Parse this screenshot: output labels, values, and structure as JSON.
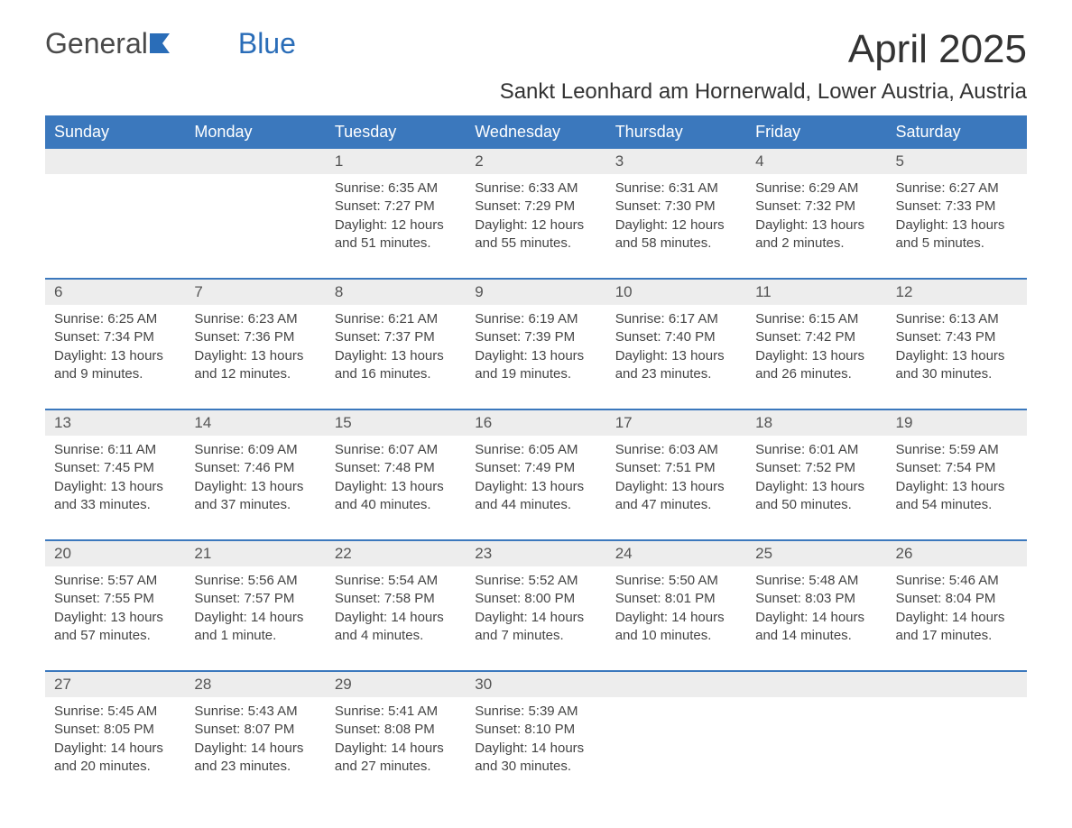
{
  "logo": {
    "text_general": "General",
    "text_blue": "Blue",
    "color_general": "#4a4a4a",
    "color_blue": "#2a6db8"
  },
  "title": "April 2025",
  "subtitle": "Sankt Leonhard am Hornerwald, Lower Austria, Austria",
  "colors": {
    "header_bg": "#3b78bd",
    "header_text": "#ffffff",
    "day_number_bg": "#ededed",
    "day_number_text": "#555555",
    "body_text": "#444444",
    "border": "#3b78bd",
    "page_bg": "#ffffff"
  },
  "typography": {
    "title_fontsize": 44,
    "subtitle_fontsize": 24,
    "header_fontsize": 18,
    "day_number_fontsize": 17,
    "content_fontsize": 15
  },
  "weekdays": [
    "Sunday",
    "Monday",
    "Tuesday",
    "Wednesday",
    "Thursday",
    "Friday",
    "Saturday"
  ],
  "weeks": [
    [
      {
        "day": "",
        "sunrise": "",
        "sunset": "",
        "daylight": ""
      },
      {
        "day": "",
        "sunrise": "",
        "sunset": "",
        "daylight": ""
      },
      {
        "day": "1",
        "sunrise": "Sunrise: 6:35 AM",
        "sunset": "Sunset: 7:27 PM",
        "daylight": "Daylight: 12 hours and 51 minutes."
      },
      {
        "day": "2",
        "sunrise": "Sunrise: 6:33 AM",
        "sunset": "Sunset: 7:29 PM",
        "daylight": "Daylight: 12 hours and 55 minutes."
      },
      {
        "day": "3",
        "sunrise": "Sunrise: 6:31 AM",
        "sunset": "Sunset: 7:30 PM",
        "daylight": "Daylight: 12 hours and 58 minutes."
      },
      {
        "day": "4",
        "sunrise": "Sunrise: 6:29 AM",
        "sunset": "Sunset: 7:32 PM",
        "daylight": "Daylight: 13 hours and 2 minutes."
      },
      {
        "day": "5",
        "sunrise": "Sunrise: 6:27 AM",
        "sunset": "Sunset: 7:33 PM",
        "daylight": "Daylight: 13 hours and 5 minutes."
      }
    ],
    [
      {
        "day": "6",
        "sunrise": "Sunrise: 6:25 AM",
        "sunset": "Sunset: 7:34 PM",
        "daylight": "Daylight: 13 hours and 9 minutes."
      },
      {
        "day": "7",
        "sunrise": "Sunrise: 6:23 AM",
        "sunset": "Sunset: 7:36 PM",
        "daylight": "Daylight: 13 hours and 12 minutes."
      },
      {
        "day": "8",
        "sunrise": "Sunrise: 6:21 AM",
        "sunset": "Sunset: 7:37 PM",
        "daylight": "Daylight: 13 hours and 16 minutes."
      },
      {
        "day": "9",
        "sunrise": "Sunrise: 6:19 AM",
        "sunset": "Sunset: 7:39 PM",
        "daylight": "Daylight: 13 hours and 19 minutes."
      },
      {
        "day": "10",
        "sunrise": "Sunrise: 6:17 AM",
        "sunset": "Sunset: 7:40 PM",
        "daylight": "Daylight: 13 hours and 23 minutes."
      },
      {
        "day": "11",
        "sunrise": "Sunrise: 6:15 AM",
        "sunset": "Sunset: 7:42 PM",
        "daylight": "Daylight: 13 hours and 26 minutes."
      },
      {
        "day": "12",
        "sunrise": "Sunrise: 6:13 AM",
        "sunset": "Sunset: 7:43 PM",
        "daylight": "Daylight: 13 hours and 30 minutes."
      }
    ],
    [
      {
        "day": "13",
        "sunrise": "Sunrise: 6:11 AM",
        "sunset": "Sunset: 7:45 PM",
        "daylight": "Daylight: 13 hours and 33 minutes."
      },
      {
        "day": "14",
        "sunrise": "Sunrise: 6:09 AM",
        "sunset": "Sunset: 7:46 PM",
        "daylight": "Daylight: 13 hours and 37 minutes."
      },
      {
        "day": "15",
        "sunrise": "Sunrise: 6:07 AM",
        "sunset": "Sunset: 7:48 PM",
        "daylight": "Daylight: 13 hours and 40 minutes."
      },
      {
        "day": "16",
        "sunrise": "Sunrise: 6:05 AM",
        "sunset": "Sunset: 7:49 PM",
        "daylight": "Daylight: 13 hours and 44 minutes."
      },
      {
        "day": "17",
        "sunrise": "Sunrise: 6:03 AM",
        "sunset": "Sunset: 7:51 PM",
        "daylight": "Daylight: 13 hours and 47 minutes."
      },
      {
        "day": "18",
        "sunrise": "Sunrise: 6:01 AM",
        "sunset": "Sunset: 7:52 PM",
        "daylight": "Daylight: 13 hours and 50 minutes."
      },
      {
        "day": "19",
        "sunrise": "Sunrise: 5:59 AM",
        "sunset": "Sunset: 7:54 PM",
        "daylight": "Daylight: 13 hours and 54 minutes."
      }
    ],
    [
      {
        "day": "20",
        "sunrise": "Sunrise: 5:57 AM",
        "sunset": "Sunset: 7:55 PM",
        "daylight": "Daylight: 13 hours and 57 minutes."
      },
      {
        "day": "21",
        "sunrise": "Sunrise: 5:56 AM",
        "sunset": "Sunset: 7:57 PM",
        "daylight": "Daylight: 14 hours and 1 minute."
      },
      {
        "day": "22",
        "sunrise": "Sunrise: 5:54 AM",
        "sunset": "Sunset: 7:58 PM",
        "daylight": "Daylight: 14 hours and 4 minutes."
      },
      {
        "day": "23",
        "sunrise": "Sunrise: 5:52 AM",
        "sunset": "Sunset: 8:00 PM",
        "daylight": "Daylight: 14 hours and 7 minutes."
      },
      {
        "day": "24",
        "sunrise": "Sunrise: 5:50 AM",
        "sunset": "Sunset: 8:01 PM",
        "daylight": "Daylight: 14 hours and 10 minutes."
      },
      {
        "day": "25",
        "sunrise": "Sunrise: 5:48 AM",
        "sunset": "Sunset: 8:03 PM",
        "daylight": "Daylight: 14 hours and 14 minutes."
      },
      {
        "day": "26",
        "sunrise": "Sunrise: 5:46 AM",
        "sunset": "Sunset: 8:04 PM",
        "daylight": "Daylight: 14 hours and 17 minutes."
      }
    ],
    [
      {
        "day": "27",
        "sunrise": "Sunrise: 5:45 AM",
        "sunset": "Sunset: 8:05 PM",
        "daylight": "Daylight: 14 hours and 20 minutes."
      },
      {
        "day": "28",
        "sunrise": "Sunrise: 5:43 AM",
        "sunset": "Sunset: 8:07 PM",
        "daylight": "Daylight: 14 hours and 23 minutes."
      },
      {
        "day": "29",
        "sunrise": "Sunrise: 5:41 AM",
        "sunset": "Sunset: 8:08 PM",
        "daylight": "Daylight: 14 hours and 27 minutes."
      },
      {
        "day": "30",
        "sunrise": "Sunrise: 5:39 AM",
        "sunset": "Sunset: 8:10 PM",
        "daylight": "Daylight: 14 hours and 30 minutes."
      },
      {
        "day": "",
        "sunrise": "",
        "sunset": "",
        "daylight": ""
      },
      {
        "day": "",
        "sunrise": "",
        "sunset": "",
        "daylight": ""
      },
      {
        "day": "",
        "sunrise": "",
        "sunset": "",
        "daylight": ""
      }
    ]
  ]
}
